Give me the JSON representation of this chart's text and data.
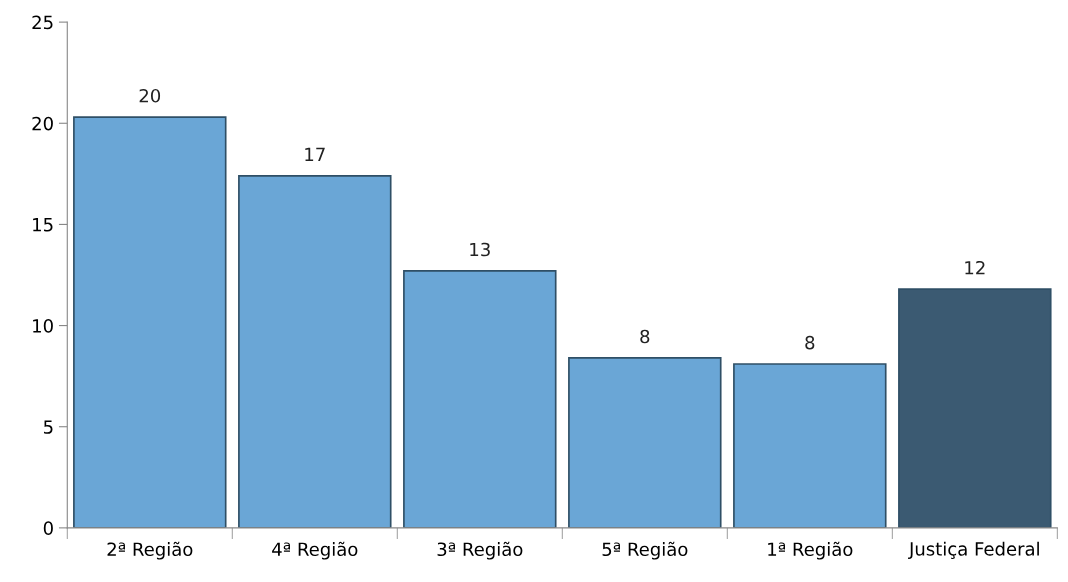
{
  "chart_data": {
    "type": "bar",
    "categories": [
      "2ª Região",
      "4ª Região",
      "3ª Região",
      "5ª Região",
      "1ª Região",
      "Justiça Federal"
    ],
    "values": [
      20.3,
      17.4,
      12.7,
      8.4,
      8.1,
      11.8
    ],
    "colors": [
      "#6aa6d6",
      "#6aa6d6",
      "#6aa6d6",
      "#6aa6d6",
      "#6aa6d6",
      "#3b5a72"
    ],
    "value_labels": [
      "20",
      "17",
      "13",
      "8",
      "8",
      "12"
    ],
    "ylim": [
      0,
      25
    ],
    "yticks": [
      0,
      5,
      10,
      15,
      20,
      25
    ],
    "grid": false,
    "legend": false
  }
}
